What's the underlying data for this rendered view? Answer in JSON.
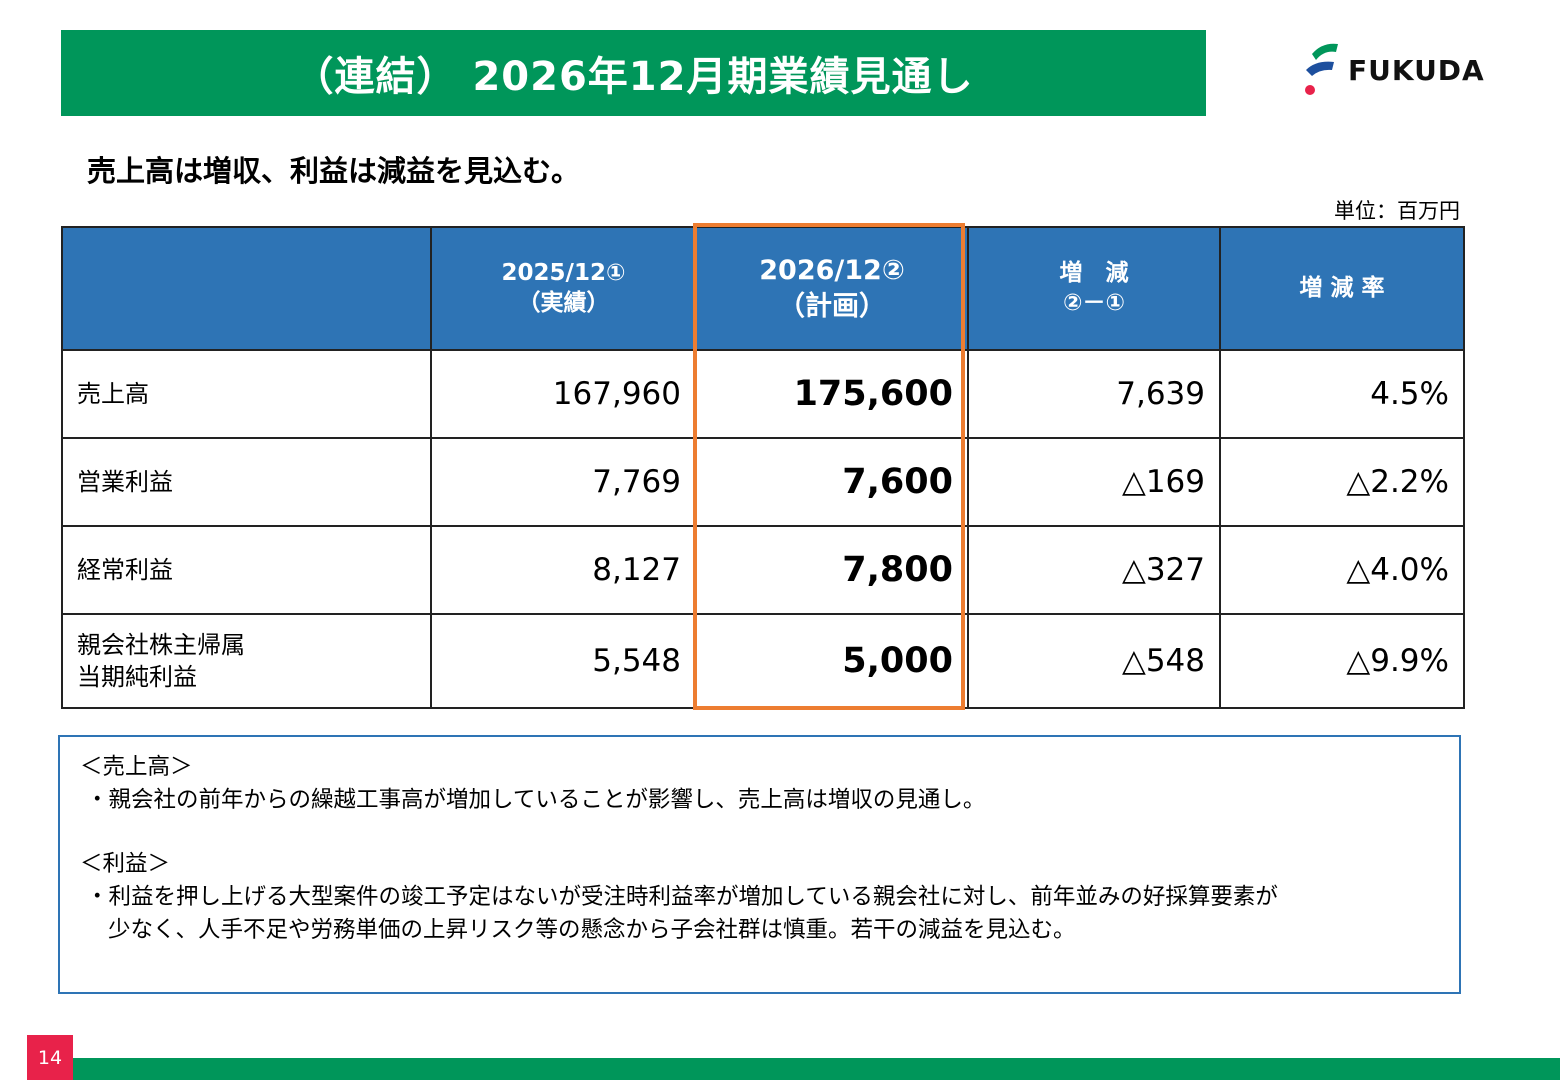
{
  "title": "（連結） 2026年12月期業績見通し",
  "logo": {
    "text": "FUKUDA",
    "colors": {
      "green": "#00965a",
      "blue": "#1d4f9e",
      "red": "#e8224a"
    }
  },
  "subtitle": "売上高は増収、利益は減益を見込む。",
  "unit": "単位：百万円",
  "table": {
    "headers": [
      {
        "line1": "",
        "line2": ""
      },
      {
        "line1": "2025/12①",
        "line2": "（実績）"
      },
      {
        "line1": "2026/12②",
        "line2": "（計画）"
      },
      {
        "line1": "増　減",
        "line2": "②－①"
      },
      {
        "line1": "増 減 率",
        "line2": ""
      }
    ],
    "rows": [
      {
        "label_line1": "売上高",
        "label_line2": "",
        "actual": "167,960",
        "plan": "175,600",
        "diff": "7,639",
        "rate": "4.5%"
      },
      {
        "label_line1": "営業利益",
        "label_line2": "",
        "actual": "7,769",
        "plan": "7,600",
        "diff": "△169",
        "rate": "△2.2%"
      },
      {
        "label_line1": "経常利益",
        "label_line2": "",
        "actual": "8,127",
        "plan": "7,800",
        "diff": "△327",
        "rate": "△4.0%"
      },
      {
        "label_line1": "親会社株主帰属",
        "label_line2": "当期純利益",
        "actual": "5,548",
        "plan": "5,000",
        "diff": "△548",
        "rate": "△9.9%"
      }
    ]
  },
  "notes": {
    "sales_heading": "＜売上高＞",
    "sales_text": "・親会社の前年からの繰越工事高が増加していることが影響し、売上高は増収の見通し。",
    "profit_heading": "＜利益＞",
    "profit_text_1": "・利益を押し上げる大型案件の竣工予定はないが受注時利益率が増加している親会社に対し、前年並みの好採算要素が",
    "profit_text_2": "少なく、人手不足や労務単価の上昇リスク等の懸念から子会社群は慎重。若干の減益を見込む。"
  },
  "page_number": "14",
  "colors": {
    "title_bar": "#00965a",
    "table_header": "#2e74b5",
    "highlight": "#ed7d31",
    "page_badge": "#e8224a"
  }
}
